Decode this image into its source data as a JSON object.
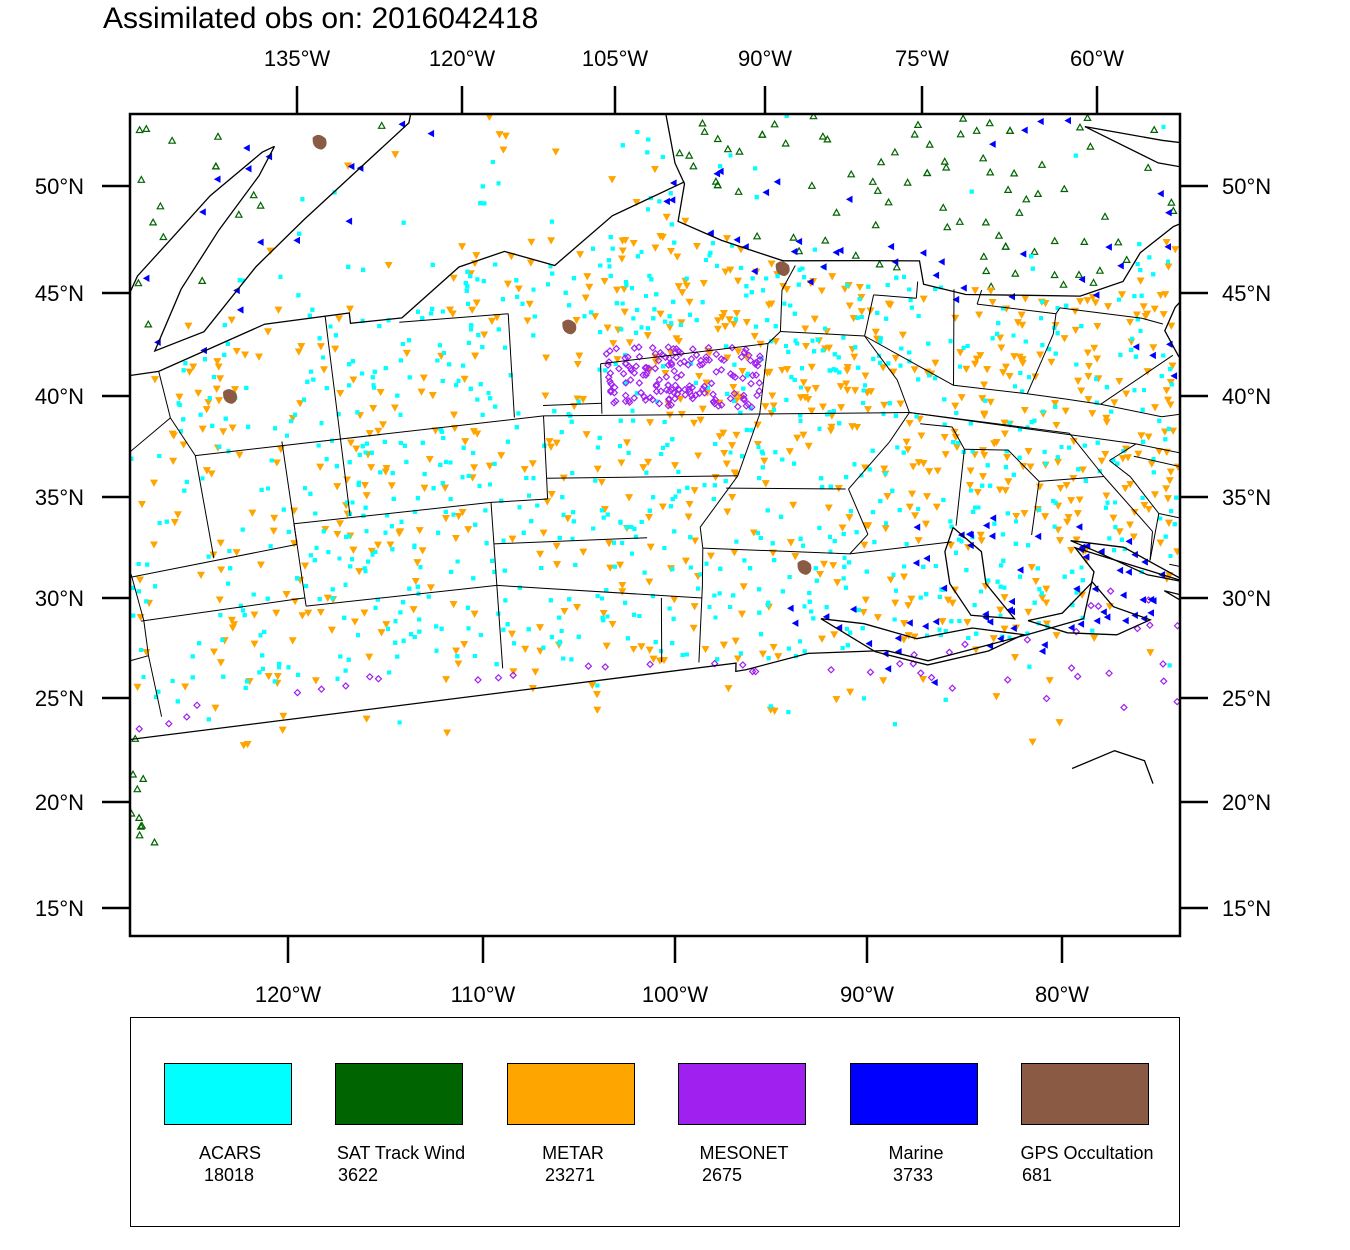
{
  "title": "Assimilated obs on: 2016042418",
  "map": {
    "top_lon_labels": [
      "135°W",
      "120°W",
      "105°W",
      "90°W",
      "75°W",
      "60°W"
    ],
    "bottom_lon_labels": [
      "120°W",
      "110°W",
      "100°W",
      "90°W",
      "80°W"
    ],
    "lat_labels": [
      "50°N",
      "45°N",
      "40°N",
      "35°N",
      "30°N",
      "25°N",
      "20°N",
      "15°N"
    ],
    "colors": {
      "ocean": "#ffffff",
      "coastline": "#000000",
      "state_border": "#000000"
    }
  },
  "legend": {
    "items": [
      {
        "name": "ACARS",
        "count": "18018",
        "color": "#00ffff",
        "marker": "square"
      },
      {
        "name": "SAT Track Wind",
        "count": "3622",
        "color": "#006400",
        "marker": "triangle-up"
      },
      {
        "name": "METAR",
        "count": "23271",
        "color": "#ffa500",
        "marker": "triangle-down"
      },
      {
        "name": "MESONET",
        "count": "2675",
        "color": "#a020f0",
        "marker": "diamond"
      },
      {
        "name": "Marine",
        "count": "3733",
        "color": "#0000ff",
        "marker": "triangle-left"
      },
      {
        "name": "GPS Occultation",
        "count": "681",
        "color": "#8b5a44",
        "marker": "blob"
      }
    ]
  }
}
